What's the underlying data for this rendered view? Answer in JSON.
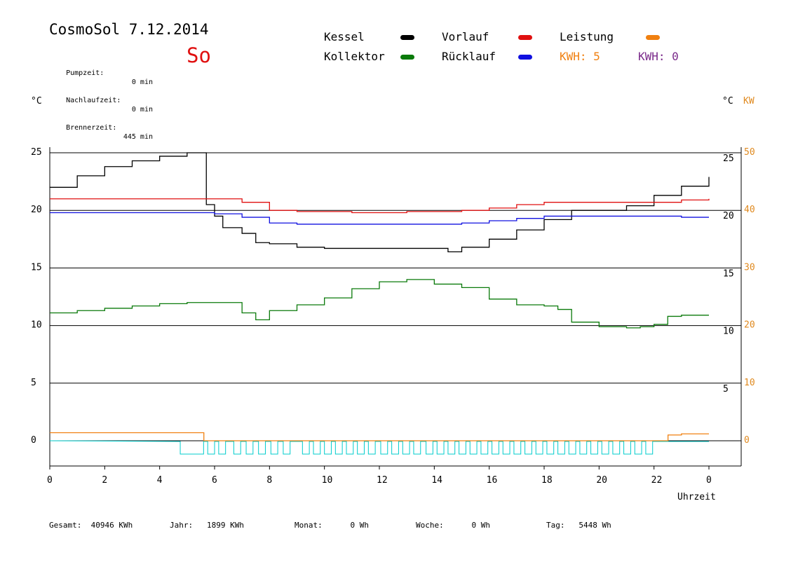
{
  "header": {
    "title": "CosmoSol 7.12.2014",
    "day": "So",
    "stats": [
      {
        "label": "Pumpzeit:",
        "value": "0 min"
      },
      {
        "label": "Nachlaufzeit:",
        "value": "0 min"
      },
      {
        "label": "Brennerzeit:",
        "value": "445 min"
      }
    ]
  },
  "legend": {
    "kessel": "Kessel",
    "kollektor": "Kollektor",
    "vorlauf": "Vorlauf",
    "ruecklauf": "Rücklauf",
    "leistung": "Leistung",
    "kwh1": "KWH: 5",
    "kwh2": "KWH: 0"
  },
  "axes": {
    "left_unit": "°C",
    "right_unit": "°C",
    "right_unit2": "KW",
    "x_label": "Uhrzeit"
  },
  "footer": {
    "gesamt": "Gesamt:  40946 KWh",
    "jahr": "Jahr:   1899 KWh",
    "monat": "Monat:      0 Wh",
    "woche": "Woche:      0 Wh",
    "tag": "Tag:   5448 Wh"
  },
  "colors": {
    "kessel": "#000000",
    "kollektor": "#0a7a0a",
    "vorlauf": "#e01010",
    "ruecklauf": "#1010e0",
    "leistung": "#f08010",
    "kwh2": "#7a2a8a",
    "pump": "#00cccc",
    "axis_right": "#e08a20"
  },
  "chart_data": {
    "type": "line",
    "x_ticks": [
      "0",
      "2",
      "4",
      "6",
      "8",
      "10",
      "12",
      "14",
      "16",
      "18",
      "20",
      "22",
      "0"
    ],
    "y_ticks_left": [
      "0",
      "5",
      "10",
      "15",
      "20",
      "25"
    ],
    "y_ticks_right_c": [
      "5",
      "10",
      "15",
      "20",
      "25"
    ],
    "y_ticks_right_kw": [
      "0",
      "10",
      "20",
      "30",
      "40",
      "50"
    ],
    "xlim": [
      0,
      24
    ],
    "ylim": [
      -2,
      26
    ],
    "series": [
      {
        "name": "Kessel",
        "key": "kessel",
        "x": [
          0,
          1,
          2,
          3,
          4,
          5,
          5.6,
          5.7,
          6,
          6.3,
          7,
          7.5,
          8,
          9,
          10,
          11,
          12,
          13,
          14,
          14.5,
          15,
          16,
          17,
          18,
          19,
          20,
          20.8,
          21,
          22,
          23,
          24
        ],
        "y": [
          22,
          23,
          23.8,
          24.3,
          24.7,
          25,
          25,
          20.5,
          19.5,
          18.5,
          18,
          17.2,
          17.1,
          16.8,
          16.7,
          16.7,
          16.7,
          16.7,
          16.7,
          16.4,
          16.8,
          17.5,
          18.3,
          19.2,
          20,
          20,
          20,
          20.4,
          21.3,
          22.1,
          22.9
        ]
      },
      {
        "name": "Vorlauf",
        "key": "vorlauf",
        "x": [
          0,
          3,
          5.5,
          6.5,
          7,
          8,
          9,
          11,
          13,
          15,
          16,
          17,
          18,
          20,
          23,
          24
        ],
        "y": [
          21,
          21,
          21,
          21,
          20.7,
          20,
          19.9,
          19.8,
          19.9,
          20,
          20.2,
          20.5,
          20.7,
          20.7,
          20.9,
          21
        ]
      },
      {
        "name": "Rücklauf",
        "key": "ruecklauf",
        "x": [
          0,
          4,
          6,
          7,
          8,
          9,
          12,
          15,
          16,
          17,
          18,
          20,
          23,
          24
        ],
        "y": [
          19.8,
          19.8,
          19.7,
          19.4,
          18.9,
          18.8,
          18.8,
          18.9,
          19.1,
          19.3,
          19.5,
          19.5,
          19.4,
          19.4
        ]
      },
      {
        "name": "Kollektor",
        "key": "kollektor",
        "x": [
          0,
          1,
          2,
          3,
          4,
          5,
          6.5,
          7,
          7.5,
          8,
          9,
          10,
          11,
          12,
          13,
          14,
          15,
          16,
          17,
          18,
          18.5,
          19,
          20,
          21,
          21.5,
          22,
          22.5,
          23,
          24
        ],
        "y": [
          11.1,
          11.3,
          11.5,
          11.7,
          11.9,
          12,
          12,
          11.1,
          10.5,
          11.3,
          11.8,
          12.4,
          13.2,
          13.8,
          14,
          13.6,
          13.3,
          12.3,
          11.8,
          11.7,
          11.4,
          10.3,
          9.9,
          9.8,
          9.9,
          10.1,
          10.8,
          10.9,
          10.9
        ]
      },
      {
        "name": "Leistung",
        "key": "leistung",
        "x": [
          0,
          5.6,
          5.61,
          22.5,
          22.51,
          23,
          24
        ],
        "y": [
          0.7,
          0.7,
          0,
          0,
          0.5,
          0.6,
          0.6
        ]
      }
    ],
    "pump_on_intervals": [
      [
        4.75,
        5.6
      ],
      [
        5.75,
        6.0
      ],
      [
        6.15,
        6.4
      ],
      [
        6.7,
        6.95
      ],
      [
        7.15,
        7.4
      ],
      [
        7.6,
        7.85
      ],
      [
        8.05,
        8.3
      ],
      [
        8.5,
        8.75
      ],
      [
        9.2,
        9.45
      ],
      [
        9.6,
        9.85
      ],
      [
        10.0,
        10.25
      ],
      [
        10.4,
        10.65
      ],
      [
        10.8,
        11.05
      ],
      [
        11.2,
        11.45
      ],
      [
        11.6,
        11.85
      ],
      [
        12.05,
        12.3
      ],
      [
        12.45,
        12.7
      ],
      [
        12.85,
        13.1
      ],
      [
        13.25,
        13.5
      ],
      [
        13.7,
        13.95
      ],
      [
        14.1,
        14.35
      ],
      [
        14.5,
        14.75
      ],
      [
        14.9,
        15.15
      ],
      [
        15.3,
        15.55
      ],
      [
        15.7,
        15.95
      ],
      [
        16.1,
        16.35
      ],
      [
        16.5,
        16.75
      ],
      [
        16.9,
        17.15
      ],
      [
        17.3,
        17.55
      ],
      [
        17.7,
        17.95
      ],
      [
        18.1,
        18.35
      ],
      [
        18.5,
        18.75
      ],
      [
        18.9,
        19.15
      ],
      [
        19.3,
        19.55
      ],
      [
        19.7,
        19.95
      ],
      [
        20.1,
        20.35
      ],
      [
        20.5,
        20.75
      ],
      [
        20.9,
        21.15
      ],
      [
        21.3,
        21.55
      ],
      [
        21.7,
        21.95
      ]
    ]
  }
}
